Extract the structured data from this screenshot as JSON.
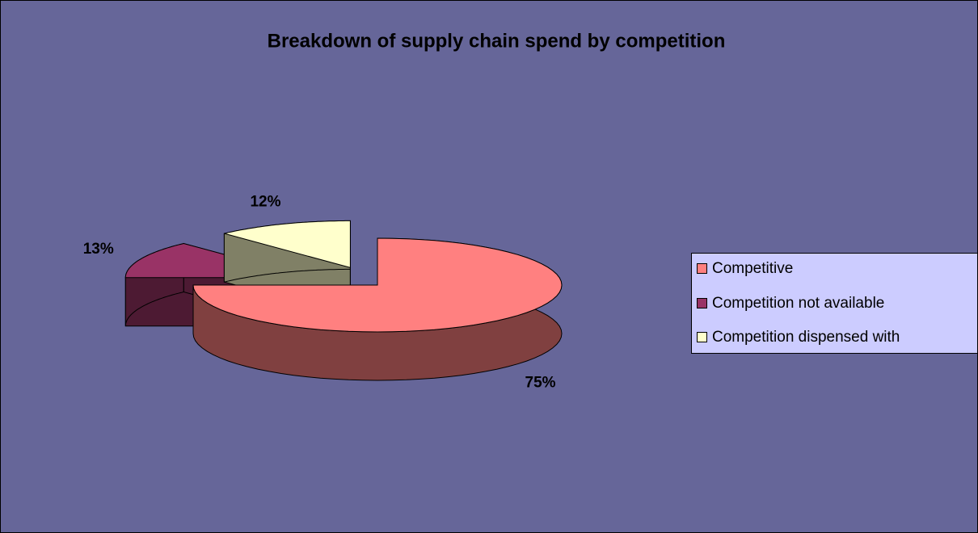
{
  "chart_data": {
    "type": "pie",
    "title": "Breakdown of supply chain spend by competition",
    "categories": [
      "Competitive",
      "Competition not available",
      "Competition dispensed with"
    ],
    "values": [
      75,
      13,
      12
    ],
    "value_labels": [
      "75%",
      "13%",
      "12%"
    ],
    "colors": [
      "#ff8080",
      "#993366",
      "#ffffcc"
    ],
    "legend": "right"
  }
}
